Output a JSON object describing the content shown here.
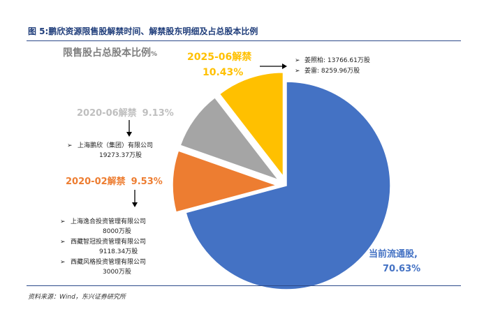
{
  "figure_title": "图 5:鹏欣资源限售股解禁时间、解禁股东明细及占总股本比例",
  "source_note": "资料来源：Wind，东兴证券研究所",
  "chart_data": {
    "type": "pie",
    "title": "限售股占总股本比例",
    "title_suffix": "%",
    "slices": [
      {
        "id": "current",
        "label": "当前流通股,",
        "value": 70.63,
        "value_text": "70.63%",
        "color": "#4472c4"
      },
      {
        "id": "feb2020",
        "label": "2020-02解禁",
        "value": 9.53,
        "value_text": "9.53%",
        "color": "#ed7d31"
      },
      {
        "id": "jun2020",
        "label": "2020-06解禁",
        "value": 9.13,
        "value_text": "9.13%",
        "color": "#a5a5a5"
      },
      {
        "id": "jun2025",
        "label": "2025-06解禁",
        "value": 10.43,
        "value_text": "10.43%",
        "color": "#ffc000"
      }
    ],
    "annotations": {
      "jun2025": [
        {
          "name": "姜照柏: 13766.61万股"
        },
        {
          "name": "姜雷: 8259.96万股"
        }
      ],
      "jun2020": [
        {
          "name": "上海鹏欣（集团）有限公司",
          "shares": "19273.37万股"
        }
      ],
      "feb2020": [
        {
          "name": "上海逸合投资管理有限公司",
          "shares": "8000万股"
        },
        {
          "name": "西藏智冠投资管理有限公司",
          "shares": "9118.34万股"
        },
        {
          "name": "西藏风格投资管理有限公司",
          "shares": "3000万股"
        }
      ]
    },
    "bullet": "➢"
  }
}
